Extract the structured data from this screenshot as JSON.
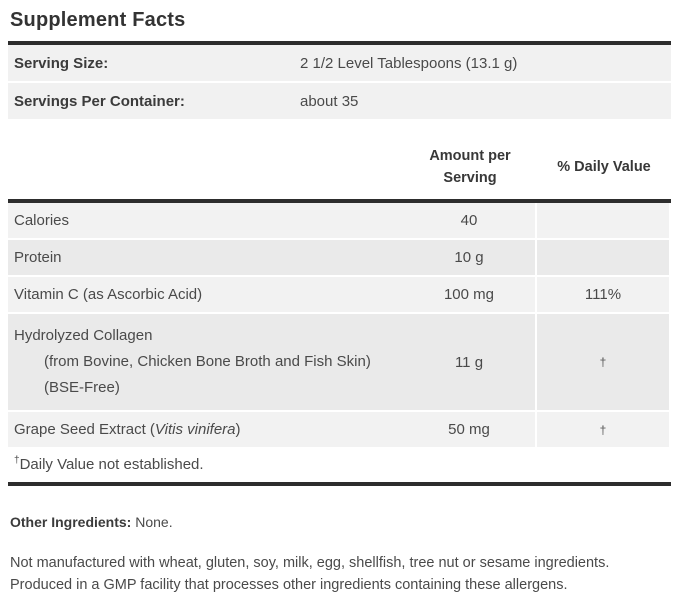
{
  "title": "Supplement Facts",
  "serving_info": {
    "rows": [
      {
        "label": "Serving Size:",
        "value": "2 1/2 Level Tablespoons (13.1 g)"
      },
      {
        "label": "Servings Per Container:",
        "value": "about 35"
      }
    ]
  },
  "table": {
    "headers": {
      "amount_line1": "Amount per",
      "amount_line2": "Serving",
      "daily_value": "% Daily Value"
    },
    "rows": [
      {
        "name": "Calories",
        "amount": "40",
        "dv": ""
      },
      {
        "name": "Protein",
        "amount": "10 g",
        "dv": ""
      },
      {
        "name": "Vitamin C (as Ascorbic Acid)",
        "amount": "100 mg",
        "dv": "111%"
      },
      {
        "name": "Hydrolyzed Collagen",
        "detail": "(from Bovine, Chicken Bone Broth and Fish Skin) (BSE-Free)",
        "amount": "11 g",
        "dv": "†"
      },
      {
        "name_prefix": "Grape Seed Extract (",
        "name_italic": "Vitis vinifera",
        "name_suffix": ")",
        "amount": "50 mg",
        "dv": "†"
      }
    ],
    "footnote_symbol": "†",
    "footnote_text": "Daily Value not established."
  },
  "other_ingredients": {
    "label": "Other Ingredients:",
    "value": "None."
  },
  "allergen_note": "Not manufactured with wheat, gluten, soy, milk, egg, shellfish, tree nut or sesame ingredients. Produced in a GMP facility that processes other ingredients containing these allergens.",
  "colors": {
    "bar": "#2d2d2d",
    "row_light": "#f2f2f2",
    "row_dark": "#eaeaea",
    "serving_row": "#f1f1f1",
    "text": "#4a4a4a"
  }
}
